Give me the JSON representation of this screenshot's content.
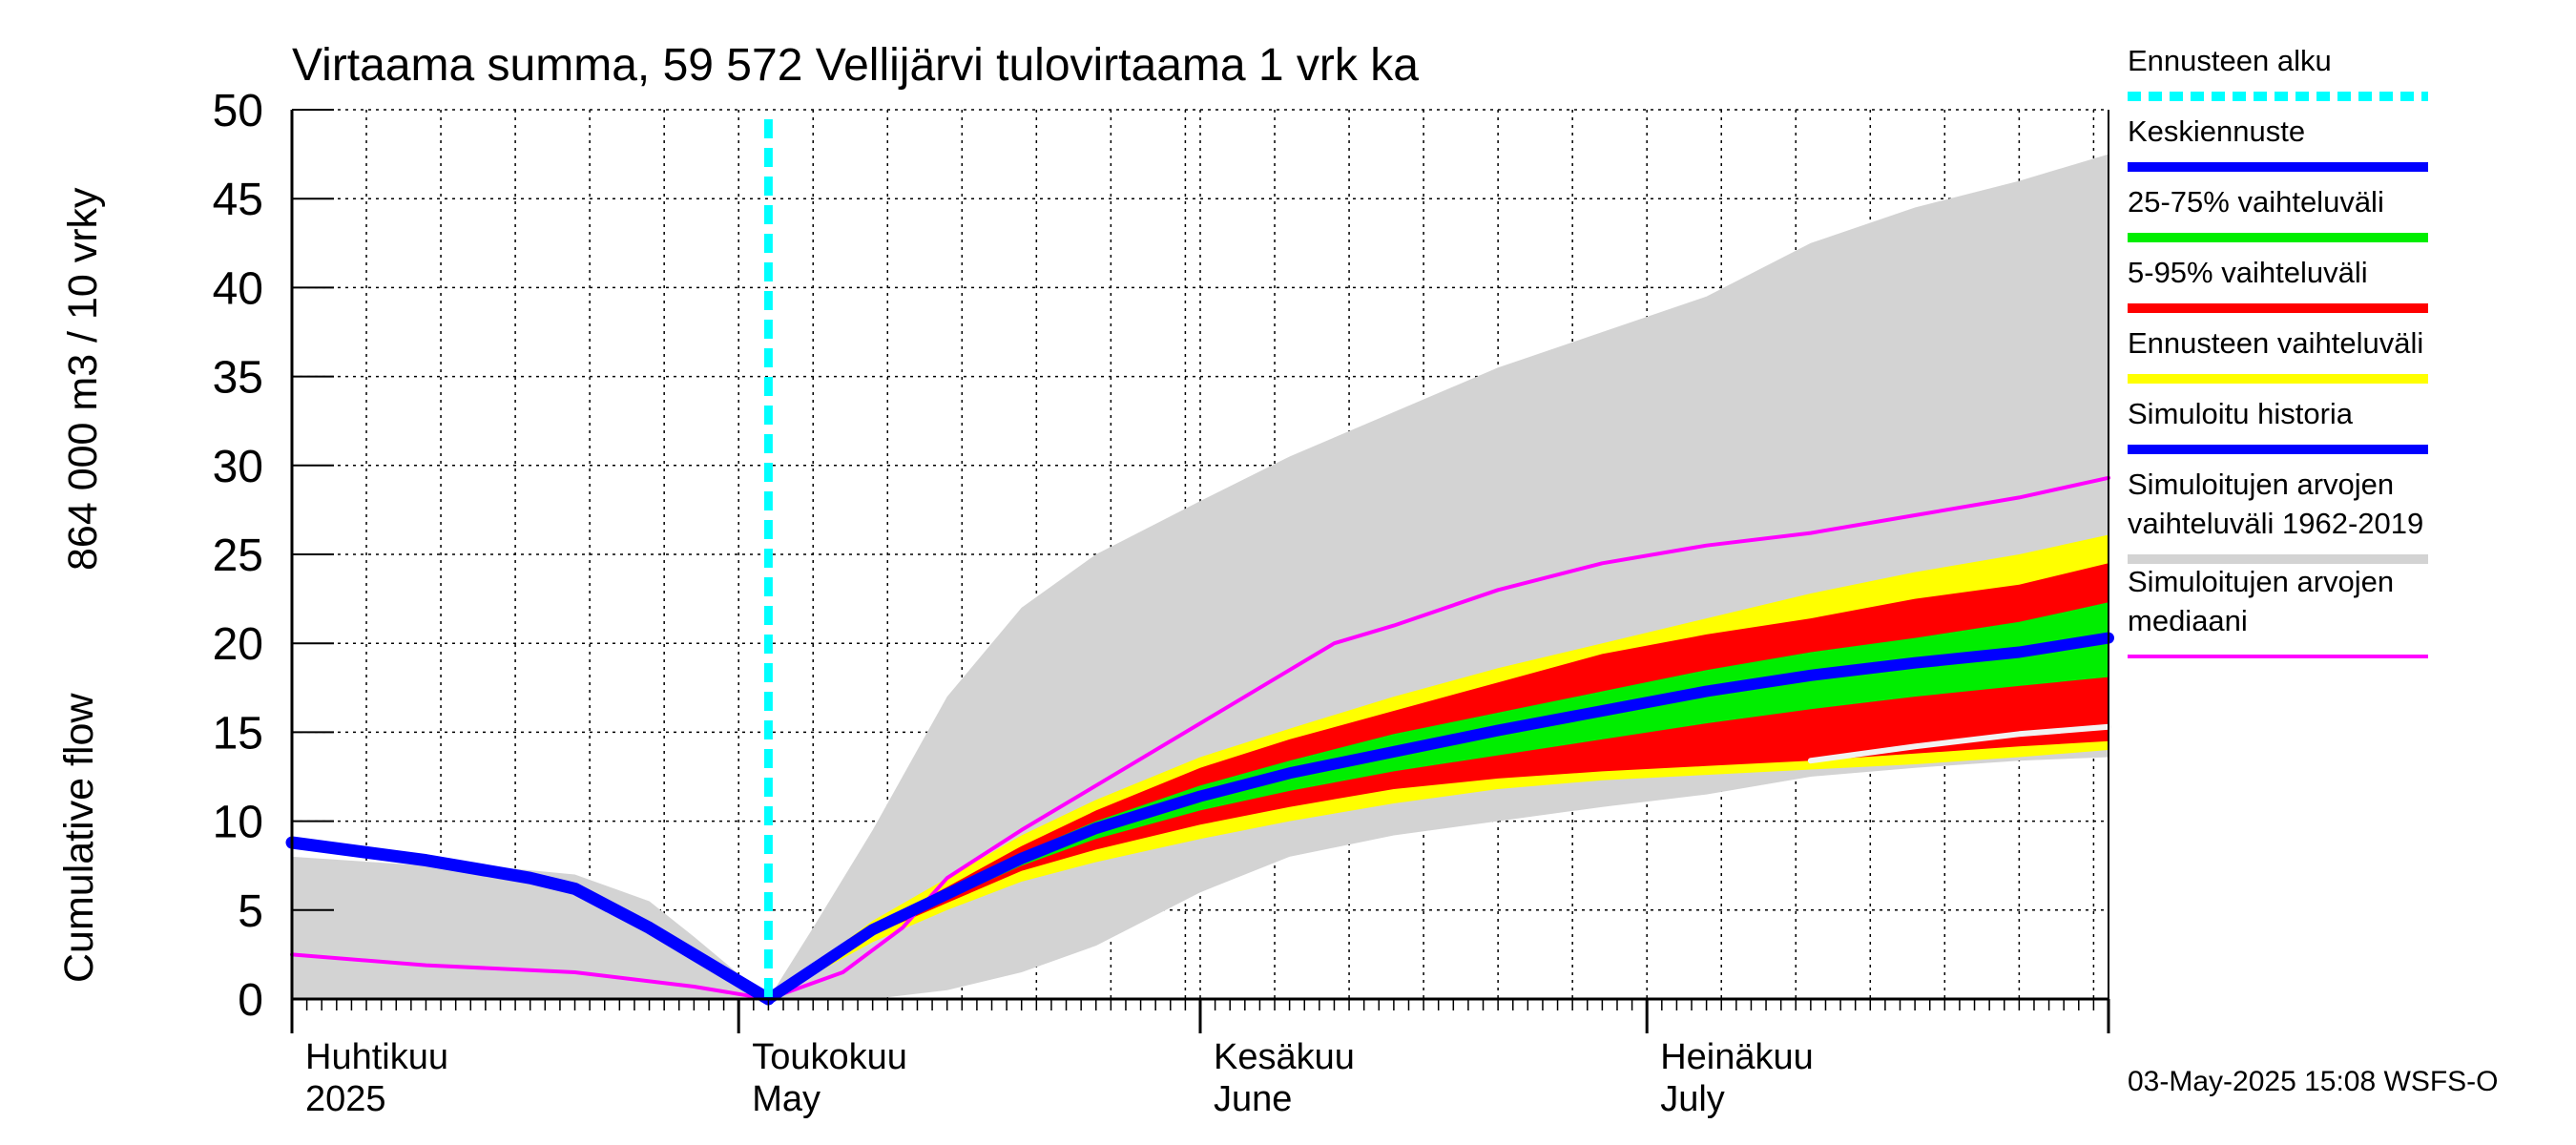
{
  "chart_data": {
    "type": "area",
    "title": "Virtaama summa, 59 572 Vellijärvi tulovirtaama 1 vrk ka",
    "ylabel_left": "Cumulative flow",
    "ylabel_right": "864 000 m3 / 10 vrky",
    "ylim": [
      0,
      50
    ],
    "yticks": [
      0,
      5,
      10,
      15,
      20,
      25,
      30,
      35,
      40,
      45,
      50
    ],
    "xlim": [
      "2025-04-01",
      "2025-08-01"
    ],
    "grid": true,
    "legend_position": "right",
    "month_labels": [
      {
        "date": "2025-04-01",
        "line1": "Huhtikuu",
        "line2": "2025"
      },
      {
        "date": "2025-05-01",
        "line1": "Toukokuu",
        "line2": "May"
      },
      {
        "date": "2025-06-01",
        "line1": "Kesäkuu",
        "line2": "June"
      },
      {
        "date": "2025-07-01",
        "line1": "Heinäkuu",
        "line2": "July"
      }
    ],
    "forecast_start": "2025-05-03",
    "series": [
      {
        "key": "hist_range",
        "name": "Simuloitujen arvojen vaihteluväli 1962-2019",
        "color": "#d3d3d3",
        "x": [
          "2025-04-01",
          "2025-04-10",
          "2025-04-15",
          "2025-04-20",
          "2025-04-25",
          "2025-04-28",
          "2025-05-03",
          "2025-05-06",
          "2025-05-10",
          "2025-05-15",
          "2025-05-20",
          "2025-05-25",
          "2025-06-01",
          "2025-06-07",
          "2025-06-14",
          "2025-06-21",
          "2025-06-28",
          "2025-07-05",
          "2025-07-12",
          "2025-07-19",
          "2025-07-26",
          "2025-08-01"
        ],
        "upper": [
          8.0,
          7.5,
          7.4,
          7.0,
          5.5,
          3.5,
          0,
          4,
          9.5,
          17,
          22,
          25,
          28,
          30.5,
          33,
          35.5,
          37.5,
          39.5,
          42.5,
          44.5,
          46.0,
          47.5
        ],
        "lower": [
          0,
          0,
          0,
          0,
          0,
          0,
          0,
          0,
          0,
          0.5,
          1.5,
          3,
          6,
          8,
          9.2,
          10,
          10.8,
          11.5,
          12.5,
          13,
          13.4,
          13.6
        ]
      },
      {
        "key": "ennuste_range",
        "name": "Ennusteen vaihteluväli",
        "color": "#ffff00",
        "x": [
          "2025-05-03",
          "2025-05-10",
          "2025-05-15",
          "2025-05-20",
          "2025-05-25",
          "2025-06-01",
          "2025-06-07",
          "2025-06-14",
          "2025-06-21",
          "2025-06-28",
          "2025-07-05",
          "2025-07-12",
          "2025-07-19",
          "2025-07-26",
          "2025-08-01"
        ],
        "upper": [
          0,
          4.4,
          6.8,
          9.2,
          11.2,
          13.6,
          15.2,
          17.0,
          18.6,
          20.0,
          21.4,
          22.8,
          24.0,
          25.0,
          26.1
        ],
        "lower": [
          0,
          3.2,
          5.0,
          6.6,
          7.7,
          9.0,
          10.0,
          11.0,
          11.8,
          12.3,
          12.6,
          12.9,
          13.2,
          13.6,
          14.0
        ]
      },
      {
        "key": "p5_95",
        "name": "5-95% vaihteluväli",
        "color": "#ff0000",
        "x": [
          "2025-05-03",
          "2025-05-10",
          "2025-05-15",
          "2025-05-20",
          "2025-05-25",
          "2025-06-01",
          "2025-06-07",
          "2025-06-14",
          "2025-06-21",
          "2025-06-28",
          "2025-07-05",
          "2025-07-12",
          "2025-07-19",
          "2025-07-26",
          "2025-08-01"
        ],
        "upper": [
          0,
          4.1,
          6.3,
          8.6,
          10.6,
          13.0,
          14.6,
          16.2,
          17.8,
          19.4,
          20.5,
          21.4,
          22.5,
          23.3,
          24.5
        ],
        "lower": [
          0,
          3.6,
          5.4,
          7.2,
          8.4,
          9.8,
          10.8,
          11.8,
          12.4,
          12.8,
          13.1,
          13.4,
          13.8,
          14.2,
          14.5
        ]
      },
      {
        "key": "p25_75",
        "name": "25-75% vaihteluväli",
        "color": "#00ee00",
        "x": [
          "2025-05-03",
          "2025-05-10",
          "2025-05-15",
          "2025-05-20",
          "2025-05-25",
          "2025-06-01",
          "2025-06-07",
          "2025-06-14",
          "2025-06-21",
          "2025-06-28",
          "2025-07-05",
          "2025-07-12",
          "2025-07-19",
          "2025-07-26",
          "2025-08-01"
        ],
        "upper": [
          0,
          4.0,
          6.1,
          8.2,
          10.0,
          12.0,
          13.4,
          14.9,
          16.1,
          17.3,
          18.5,
          19.5,
          20.3,
          21.2,
          22.3
        ],
        "lower": [
          0,
          3.7,
          5.6,
          7.5,
          9.0,
          10.6,
          11.7,
          12.8,
          13.7,
          14.6,
          15.5,
          16.3,
          17.0,
          17.6,
          18.1
        ]
      },
      {
        "key": "median_hist",
        "name": "Simuloitujen arvojen mediaani",
        "color": "#ff00ff",
        "x": [
          "2025-04-01",
          "2025-04-10",
          "2025-04-20",
          "2025-04-28",
          "2025-05-03",
          "2025-05-08",
          "2025-05-12",
          "2025-05-15",
          "2025-05-20",
          "2025-05-25",
          "2025-06-01",
          "2025-06-07",
          "2025-06-10",
          "2025-06-14",
          "2025-06-21",
          "2025-06-28",
          "2025-07-05",
          "2025-07-12",
          "2025-07-19",
          "2025-07-26",
          "2025-08-01"
        ],
        "y": [
          2.5,
          1.9,
          1.5,
          0.7,
          0,
          1.5,
          4.0,
          6.8,
          9.5,
          12.0,
          15.5,
          18.5,
          20.0,
          21.0,
          23.0,
          24.5,
          25.5,
          26.2,
          27.2,
          28.2,
          29.3
        ]
      },
      {
        "key": "simulated_history",
        "name": "Simuloitu historia",
        "color": "#0000ff",
        "x": [
          "2025-04-01",
          "2025-04-10",
          "2025-04-17",
          "2025-04-20",
          "2025-04-25",
          "2025-04-28",
          "2025-05-03"
        ],
        "y": [
          8.8,
          7.8,
          6.8,
          6.2,
          4.0,
          2.5,
          0
        ]
      },
      {
        "key": "keskiennuste",
        "name": "Keskiennuste",
        "color": "#0000ff",
        "x": [
          "2025-05-03",
          "2025-05-10",
          "2025-05-15",
          "2025-05-20",
          "2025-05-25",
          "2025-06-01",
          "2025-06-07",
          "2025-06-14",
          "2025-06-21",
          "2025-06-28",
          "2025-07-05",
          "2025-07-12",
          "2025-07-19",
          "2025-07-26",
          "2025-08-01"
        ],
        "y": [
          0,
          3.9,
          5.9,
          7.9,
          9.6,
          11.4,
          12.7,
          13.9,
          15.1,
          16.2,
          17.3,
          18.2,
          18.9,
          19.5,
          20.3
        ]
      },
      {
        "key": "white_line",
        "color": "#f2f2f2",
        "x": [
          "2025-07-12",
          "2025-07-19",
          "2025-07-26",
          "2025-08-01"
        ],
        "y": [
          13.4,
          14.2,
          14.9,
          15.3
        ]
      }
    ],
    "legend": [
      {
        "label": "Ennusteen alku",
        "color": "#00ffff",
        "style": "dotted"
      },
      {
        "label": "Keskiennuste",
        "color": "#0000ff",
        "style": "solid"
      },
      {
        "label": "25-75% vaihteluväli",
        "color": "#00ee00",
        "style": "solid"
      },
      {
        "label": "5-95% vaihteluväli",
        "color": "#ff0000",
        "style": "solid"
      },
      {
        "label": "Ennusteen vaihteluväli",
        "color": "#ffff00",
        "style": "solid"
      },
      {
        "label": "Simuloitu historia",
        "color": "#0000ff",
        "style": "solid"
      },
      {
        "label": "Simuloitujen arvojen",
        "label2": "vaihteluväli 1962-2019",
        "color": "#d3d3d3",
        "style": "solid"
      },
      {
        "label": "Simuloitujen arvojen",
        "label2": "mediaani",
        "color": "#ff00ff",
        "style": "thin"
      }
    ]
  },
  "footer": "03-May-2025 15:08 WSFS-O"
}
